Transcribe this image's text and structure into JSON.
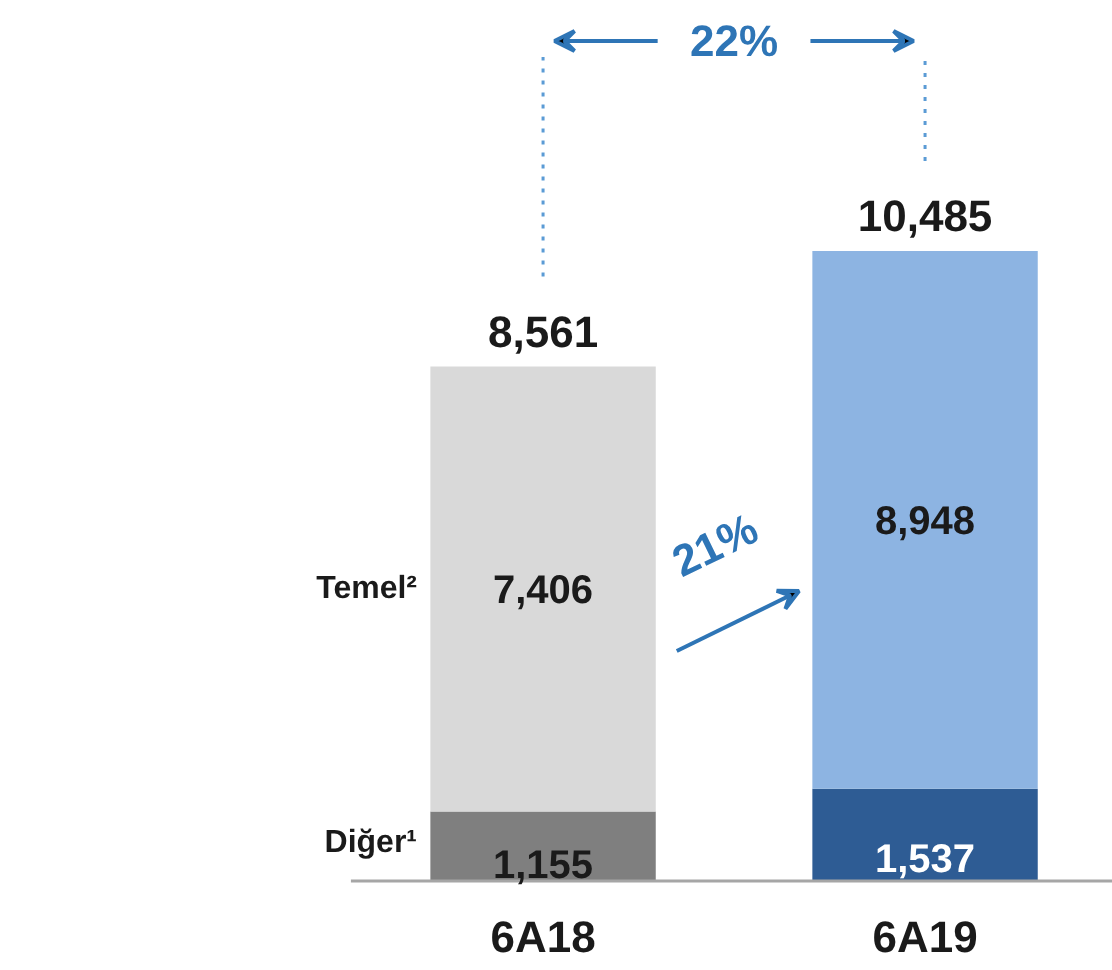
{
  "chart_data": {
    "type": "bar",
    "stacked": true,
    "categories": [
      "6A18",
      "6A19"
    ],
    "series": [
      {
        "name": "Diğer¹",
        "colors": [
          "#7f7f7f",
          "#2e5c94"
        ],
        "values": [
          1155,
          1537
        ],
        "value_labels": [
          "1,155",
          "1,537"
        ]
      },
      {
        "name": "Temel²",
        "colors": [
          "#d9d9d9",
          "#8db4e2"
        ],
        "values": [
          7406,
          8948
        ],
        "value_labels": [
          "7,406",
          "8,948"
        ]
      }
    ],
    "totals": [
      "8,561",
      "10,485"
    ],
    "tick_labels": "x",
    "grid": false,
    "annotations": [
      "22%",
      "21%"
    ]
  }
}
